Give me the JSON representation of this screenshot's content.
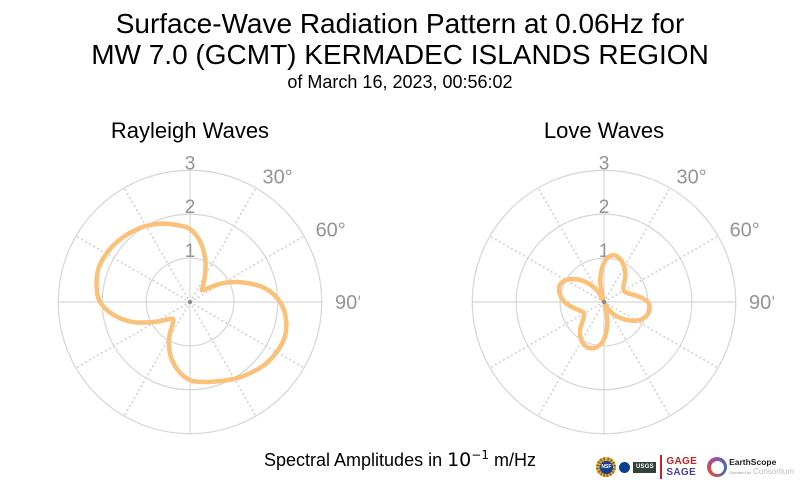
{
  "header": {
    "line1": "Surface-Wave Radiation Pattern at 0.06Hz for",
    "line2": "MW 7.0 (GCMT) KERMADEC ISLANDS REGION",
    "line3": "of March 16, 2023, 00:56:02"
  },
  "caption": {
    "prefix": "Spectral Amplitudes in ",
    "base": "10",
    "exponent": "−1",
    "suffix": " m/Hz"
  },
  "colors": {
    "curve": "#FBC07A",
    "grid": "#D8D8D8",
    "grid_dots": "#CBCBCB",
    "tick_text": "#949494",
    "center_dot": "#8A8A8A",
    "title_text": "#000000"
  },
  "chart_data": [
    {
      "type": "line",
      "projection": "polar",
      "title": "Rayleigh Waves",
      "angle_unit": "degrees clockwise from north (up)",
      "radial_ticks": [
        1,
        2,
        3
      ],
      "radial_range": [
        0,
        3
      ],
      "angle_ticks_deg": [
        30,
        60,
        90
      ],
      "angle_tick_labels": [
        "30°",
        "60°",
        "90°"
      ],
      "spoke_step_deg": 30,
      "grid": true,
      "series": [
        {
          "name": "Rayleigh-wave spectral amplitude",
          "color": "#FBC07A",
          "points": [
            [
              0,
              1.66
            ],
            [
              10,
              1.38
            ],
            [
              20,
              1.02
            ],
            [
              30,
              0.68
            ],
            [
              40,
              0.45
            ],
            [
              45,
              0.38
            ],
            [
              50,
              0.45
            ],
            [
              60,
              0.85
            ],
            [
              70,
              1.3
            ],
            [
              80,
              1.75
            ],
            [
              90,
              2.05
            ],
            [
              100,
              2.22
            ],
            [
              110,
              2.3
            ],
            [
              120,
              2.28
            ],
            [
              130,
              2.22
            ],
            [
              140,
              2.12
            ],
            [
              150,
              2.02
            ],
            [
              160,
              1.92
            ],
            [
              170,
              1.85
            ],
            [
              180,
              1.78
            ],
            [
              190,
              1.58
            ],
            [
              200,
              1.3
            ],
            [
              210,
              0.95
            ],
            [
              220,
              0.6
            ],
            [
              225,
              0.55
            ],
            [
              230,
              0.6
            ],
            [
              240,
              0.9
            ],
            [
              250,
              1.35
            ],
            [
              260,
              1.75
            ],
            [
              270,
              2.05
            ],
            [
              280,
              2.16
            ],
            [
              290,
              2.22
            ],
            [
              300,
              2.2
            ],
            [
              310,
              2.15
            ],
            [
              320,
              2.08
            ],
            [
              330,
              2.0
            ],
            [
              340,
              1.9
            ],
            [
              350,
              1.78
            ]
          ]
        }
      ]
    },
    {
      "type": "line",
      "projection": "polar",
      "title": "Love Waves",
      "angle_unit": "degrees clockwise from north (up)",
      "radial_ticks": [
        1,
        2,
        3
      ],
      "radial_range": [
        0,
        3
      ],
      "angle_ticks_deg": [
        30,
        60,
        90
      ],
      "angle_tick_labels": [
        "30°",
        "60°",
        "90°"
      ],
      "spoke_step_deg": 30,
      "grid": true,
      "series": [
        {
          "name": "Love-wave spectral amplitude",
          "color": "#FBC07A",
          "points": [
            [
              0,
              0.9
            ],
            [
              10,
              1.08
            ],
            [
              20,
              1.05
            ],
            [
              30,
              0.92
            ],
            [
              40,
              0.75
            ],
            [
              50,
              0.58
            ],
            [
              60,
              0.52
            ],
            [
              70,
              0.58
            ],
            [
              80,
              0.78
            ],
            [
              90,
              1.0
            ],
            [
              100,
              1.05
            ],
            [
              110,
              1.0
            ],
            [
              120,
              0.85
            ],
            [
              130,
              0.62
            ],
            [
              140,
              0.4
            ],
            [
              150,
              0.18
            ],
            [
              160,
              0.06
            ],
            [
              170,
              0.45
            ],
            [
              180,
              0.85
            ],
            [
              190,
              1.05
            ],
            [
              200,
              1.1
            ],
            [
              210,
              1.02
            ],
            [
              220,
              0.85
            ],
            [
              230,
              0.62
            ],
            [
              240,
              0.52
            ],
            [
              250,
              0.58
            ],
            [
              260,
              0.72
            ],
            [
              270,
              0.9
            ],
            [
              280,
              1.02
            ],
            [
              290,
              1.08
            ],
            [
              300,
              1.0
            ],
            [
              310,
              0.8
            ],
            [
              320,
              0.55
            ],
            [
              330,
              0.28
            ],
            [
              340,
              0.06
            ],
            [
              350,
              0.5
            ]
          ]
        }
      ]
    }
  ],
  "logos": {
    "nsf_label": "NSF",
    "usgs_label": "USGS",
    "gage_label": "GAGE",
    "sage_label": "SAGE",
    "earthscope_name": "EarthScope",
    "operated_by": "Operated by",
    "consortium": "Consortium"
  }
}
